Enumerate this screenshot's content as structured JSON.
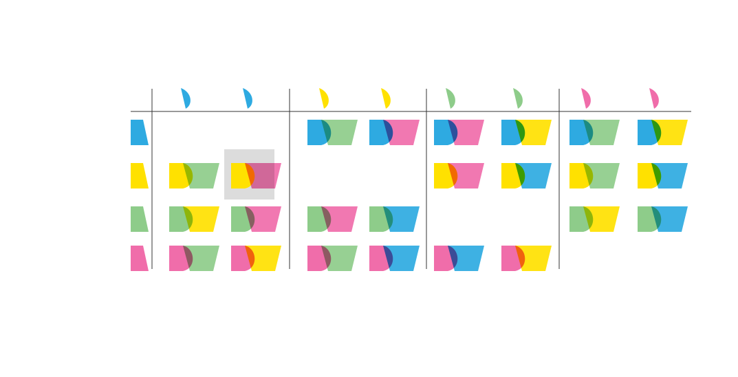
{
  "colors": {
    "blue": "#2eaae1",
    "yellow": "#ffe100",
    "green": "#8ecc8a",
    "pink": "#f06daa",
    "line": "#333333",
    "highlight": "#dcdcdc"
  },
  "row_colors": [
    "blue",
    "yellow",
    "green",
    "pink"
  ],
  "groups": [
    {
      "color": "blue",
      "cols": [
        {
          "fg": "half-tab"
        },
        {
          "fg": "half-tab"
        }
      ]
    },
    {
      "color": "yellow",
      "cols": [
        {
          "fg": "half-tab"
        },
        {
          "fg": "half-tab"
        }
      ]
    },
    {
      "color": "green",
      "cols": [
        {
          "fg": "half-tab"
        },
        {
          "fg": "half-tab"
        }
      ]
    },
    {
      "color": "pink",
      "cols": [
        {
          "fg": "half-tab"
        },
        {
          "fg": "half-tab"
        }
      ]
    }
  ],
  "cells": [
    [
      null,
      null,
      {
        "left": "blue",
        "right": "green"
      },
      {
        "left": "blue",
        "right": "pink"
      },
      {
        "left": "blue",
        "right": "pink"
      },
      {
        "left": "blue",
        "right": "yellow"
      },
      {
        "left": "blue",
        "right": "green"
      },
      {
        "left": "blue",
        "right": "yellow"
      }
    ],
    [
      {
        "left": "yellow",
        "right": "green"
      },
      {
        "left": "yellow",
        "right": "pink",
        "highlight": true
      },
      null,
      null,
      {
        "left": "yellow",
        "right": "pink"
      },
      {
        "left": "yellow",
        "right": "blue"
      },
      {
        "left": "yellow",
        "right": "green"
      },
      {
        "left": "yellow",
        "right": "blue"
      }
    ],
    [
      {
        "left": "green",
        "right": "yellow"
      },
      {
        "left": "green",
        "right": "pink"
      },
      {
        "left": "green",
        "right": "pink"
      },
      {
        "left": "green",
        "right": "blue"
      },
      null,
      null,
      {
        "left": "green",
        "right": "yellow"
      },
      {
        "left": "green",
        "right": "blue"
      }
    ],
    [
      {
        "left": "pink",
        "right": "green"
      },
      {
        "left": "pink",
        "right": "yellow"
      },
      {
        "left": "pink",
        "right": "green"
      },
      {
        "left": "pink",
        "right": "blue"
      },
      {
        "left": "pink",
        "right": "blue"
      },
      {
        "left": "pink",
        "right": "yellow"
      },
      null,
      null
    ]
  ]
}
